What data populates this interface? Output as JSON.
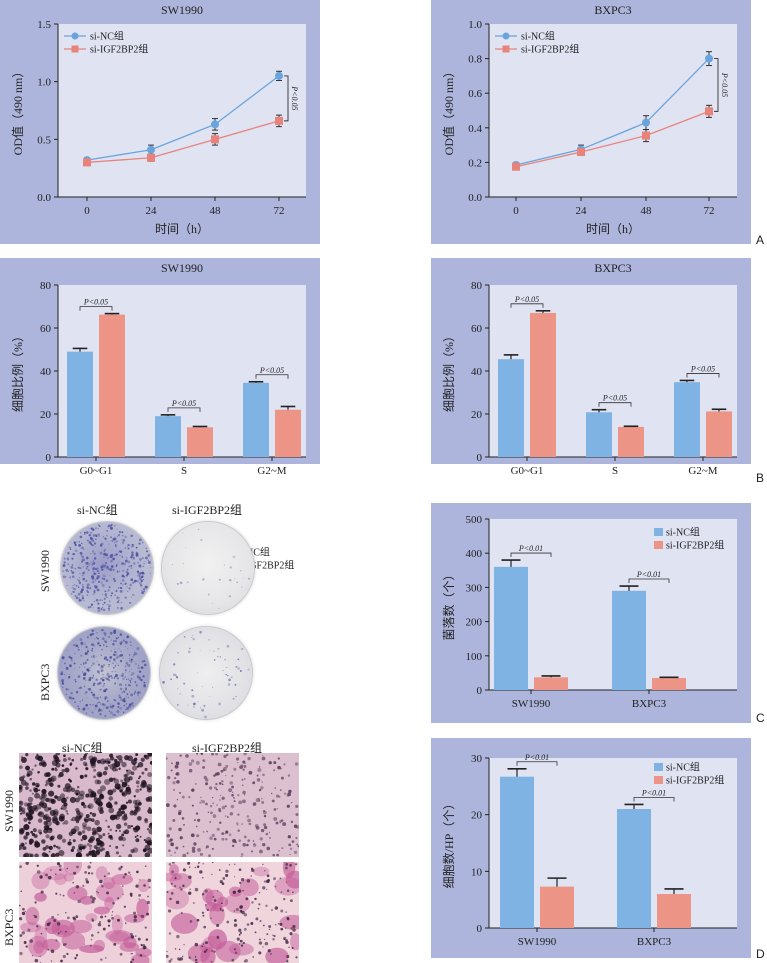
{
  "figure_letters": {
    "A": "A",
    "B": "B",
    "C": "C",
    "D": "D"
  },
  "colors": {
    "nc": "#7fb3e3",
    "igf": "#ec9486",
    "nc_line": "#6aa4dc",
    "igf_line": "#e8837c",
    "panel_bg": "#adb5dc",
    "plot_bg": "#dfe3f2"
  },
  "legend": {
    "nc": "si-NC组",
    "igf": "si-IGF2BP2组"
  },
  "images": {
    "col_nc": "si-NC组",
    "col_igf": "si-IGF2BP2组",
    "row_sw": "SW1990",
    "row_bx": "BXPC3"
  },
  "chart_data": [
    {
      "id": "A_left",
      "type": "line",
      "title": "SW1990",
      "xlabel": "时间（h）",
      "ylabel": "OD值（490 nm）",
      "x": [
        0,
        24,
        48,
        72
      ],
      "ylim": [
        0,
        1.5
      ],
      "yticks": [
        "0.0",
        "0.5",
        "1.0",
        "1.5"
      ],
      "series": [
        {
          "name": "si-NC组",
          "values": [
            0.32,
            0.41,
            0.63,
            1.05
          ],
          "errors": [
            0.02,
            0.04,
            0.05,
            0.04
          ]
        },
        {
          "name": "si-IGF2BP2组",
          "values": [
            0.3,
            0.34,
            0.5,
            0.66
          ],
          "errors": [
            0.02,
            0.03,
            0.05,
            0.05
          ]
        }
      ],
      "annotation": "P<0.05"
    },
    {
      "id": "A_right",
      "type": "line",
      "title": "BXPC3",
      "xlabel": "时间（h）",
      "ylabel": "OD值（490 nm）",
      "x": [
        0,
        24,
        48,
        72
      ],
      "ylim": [
        0,
        1.0
      ],
      "yticks": [
        "0.0",
        "0.2",
        "0.4",
        "0.6",
        "0.8",
        "1.0"
      ],
      "series": [
        {
          "name": "si-NC组",
          "values": [
            0.185,
            0.275,
            0.43,
            0.8
          ],
          "errors": [
            0.015,
            0.025,
            0.04,
            0.04
          ]
        },
        {
          "name": "si-IGF2BP2组",
          "values": [
            0.175,
            0.26,
            0.355,
            0.495
          ],
          "errors": [
            0.015,
            0.02,
            0.035,
            0.035
          ]
        }
      ],
      "annotation": "P<0.05"
    },
    {
      "id": "B_left",
      "type": "bar",
      "title": "SW1990",
      "ylabel": "细胞比例（%）",
      "categories": [
        "G0~G1",
        "S",
        "G2~M"
      ],
      "ylim": [
        0,
        80
      ],
      "yticks": [
        "0",
        "20",
        "40",
        "60",
        "80"
      ],
      "series": [
        {
          "name": "si-NC组",
          "values": [
            49,
            19,
            34.5
          ],
          "errors": [
            1.5,
            0.6,
            0.5
          ]
        },
        {
          "name": "si-IGF2BP2组",
          "values": [
            66.2,
            13.8,
            22
          ],
          "errors": [
            0.5,
            0.4,
            1.5
          ]
        }
      ],
      "annotations": [
        "P<0.05",
        "P<0.05",
        "P<0.05"
      ]
    },
    {
      "id": "B_right",
      "type": "bar",
      "title": "BXPC3",
      "ylabel": "细胞比例（%）",
      "categories": [
        "G0~G1",
        "S",
        "G2~M"
      ],
      "ylim": [
        0,
        80
      ],
      "yticks": [
        "0",
        "20",
        "40",
        "60",
        "80"
      ],
      "series": [
        {
          "name": "si-NC组",
          "values": [
            45.5,
            20.8,
            34.8
          ],
          "errors": [
            2.0,
            1.2,
            0.8
          ]
        },
        {
          "name": "si-IGF2BP2组",
          "values": [
            67,
            14,
            21.2
          ],
          "errors": [
            1.0,
            0.3,
            1.0
          ]
        }
      ],
      "annotations": [
        "P<0.05",
        "P<0.05",
        "P<0.05"
      ]
    },
    {
      "id": "C_right",
      "type": "bar",
      "title": "",
      "ylabel": "菌落数（个）",
      "categories": [
        "SW1990",
        "BXPC3"
      ],
      "ylim": [
        0,
        500
      ],
      "yticks": [
        "0",
        "100",
        "200",
        "300",
        "400",
        "500"
      ],
      "series": [
        {
          "name": "si-NC组",
          "values": [
            360,
            290
          ],
          "errors": [
            20,
            14
          ]
        },
        {
          "name": "si-IGF2BP2组",
          "values": [
            37,
            35
          ],
          "errors": [
            4,
            2
          ]
        }
      ],
      "annotations": [
        "P<0.01",
        "P<0.01"
      ]
    },
    {
      "id": "D_right",
      "type": "bar",
      "title": "",
      "ylabel": "细胞数/HP（个）",
      "categories": [
        "SW1990",
        "BXPC3"
      ],
      "ylim": [
        0,
        30
      ],
      "yticks": [
        "0",
        "10",
        "20",
        "30"
      ],
      "series": [
        {
          "name": "si-NC组",
          "values": [
            26.7,
            21
          ],
          "errors": [
            1.4,
            0.8
          ]
        },
        {
          "name": "si-IGF2BP2组",
          "values": [
            7.3,
            6
          ],
          "errors": [
            1.5,
            0.9
          ]
        }
      ],
      "annotations": [
        "P<0.01",
        "P<0.01"
      ]
    }
  ]
}
